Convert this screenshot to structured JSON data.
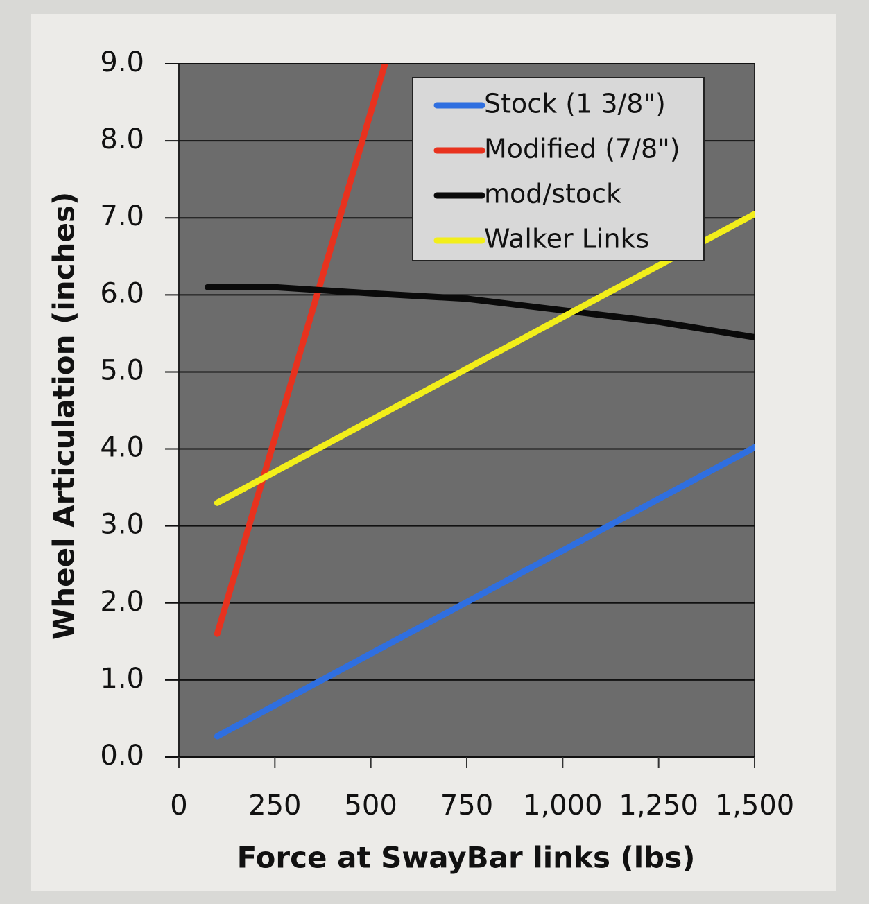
{
  "chart_data": {
    "type": "line",
    "xlabel": "Force at SwayBar links (lbs)",
    "ylabel": "Wheel Articulation (inches)",
    "xlim": [
      0,
      1500
    ],
    "xticks": [
      0,
      250,
      500,
      750,
      {
        "value": 1000,
        "label": "1,000"
      },
      {
        "value": 1250,
        "label": "1,250"
      },
      {
        "value": 1500,
        "label": "1,500"
      }
    ],
    "ylim": [
      0,
      9
    ],
    "yticks": [
      {
        "value": 0,
        "label": "0.0"
      },
      {
        "value": 1,
        "label": "1.0"
      },
      {
        "value": 2,
        "label": "2.0"
      },
      {
        "value": 3,
        "label": "3.0"
      },
      {
        "value": 4,
        "label": "4.0"
      },
      {
        "value": 5,
        "label": "5.0"
      },
      {
        "value": 6,
        "label": "6.0"
      },
      {
        "value": 7,
        "label": "7.0"
      },
      {
        "value": 8,
        "label": "8.0"
      },
      {
        "value": 9,
        "label": "9.0"
      }
    ],
    "grid": true,
    "legend": "upper right",
    "series": [
      {
        "name": "Stock (1 3/8\")",
        "color": "#2f6fe0",
        "x": [
          100,
          1500
        ],
        "values": [
          0.27,
          4.02
        ]
      },
      {
        "name": "Modified (7/8\")",
        "color": "#e8321e",
        "x": [
          100,
          537
        ],
        "values": [
          1.6,
          9.0
        ]
      },
      {
        "name": "mod/stock",
        "color": "#0a0a0a",
        "x": [
          75,
          250,
          500,
          750,
          1000,
          1250,
          1500
        ],
        "values": [
          6.1,
          6.1,
          6.02,
          5.95,
          5.8,
          5.65,
          5.45
        ]
      },
      {
        "name": "Walker Links",
        "color": "#f2ee1a",
        "x": [
          100,
          1500
        ],
        "values": [
          3.3,
          7.05
        ]
      }
    ]
  }
}
